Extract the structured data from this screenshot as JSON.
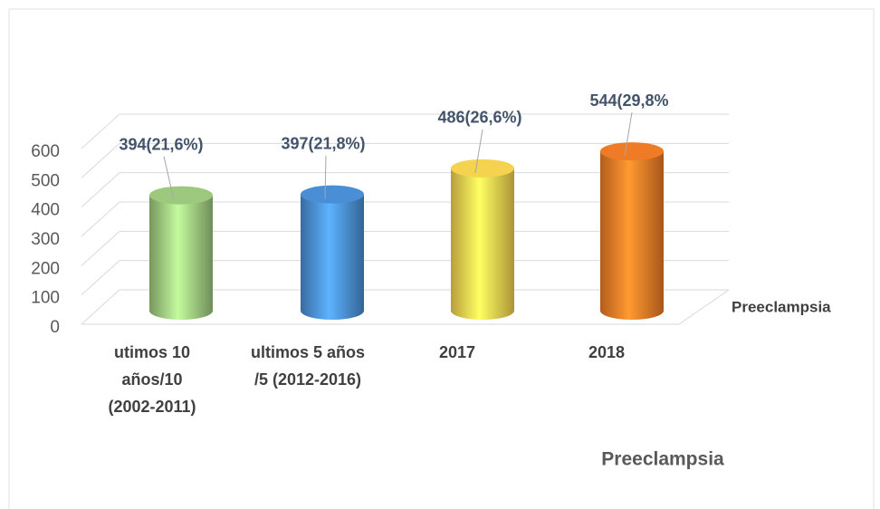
{
  "chart_data": {
    "type": "bar3d",
    "title": "Preeclampsia",
    "categories": [
      [
        "utimos 10",
        "años/10",
        "(2002-2011)"
      ],
      [
        "ultimos 5 años",
        "/5 (2012-2016)"
      ],
      [
        "2017"
      ],
      [
        "2018"
      ]
    ],
    "series": [
      {
        "name": "Preeclampsia",
        "values": [
          394,
          397,
          486,
          544
        ],
        "value_labels": [
          "394(21,6%)",
          "397(21,8%)",
          "486(26,6%)",
          "544(29,8%"
        ],
        "colors": [
          "#9dc97e",
          "#4a8fd6",
          "#f5d34f",
          "#f07b26"
        ]
      }
    ],
    "ylim": [
      0,
      600
    ],
    "yticks": [
      0,
      100,
      200,
      300,
      400,
      500,
      600
    ],
    "grid": true
  }
}
